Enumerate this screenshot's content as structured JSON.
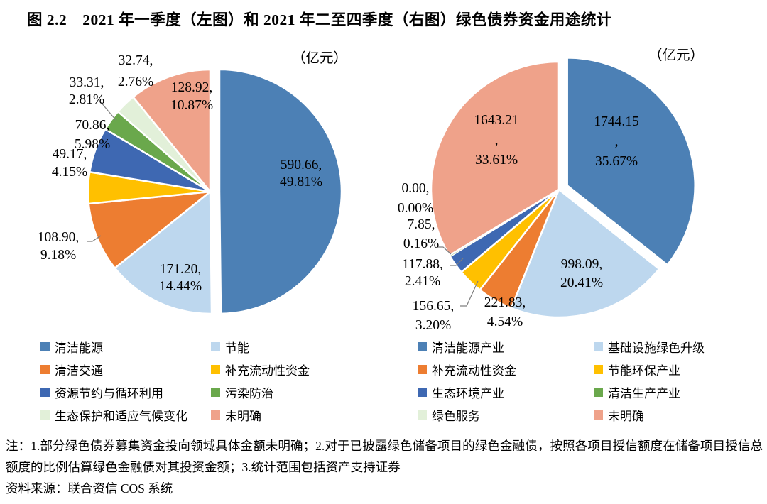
{
  "figure": {
    "title": "图 2.2　2021 年一季度（左图）和 2021 年二至四季度（右图）绿色债券资金用途统计",
    "notes": "注：1.部分绿色债券募集资金投向领域具体金额未明确；2.对于已披露绿色储备项目的绿色金融债，按照各项目授信额度在储备项目授信总额度的比例估算绿色金融债对其投资金额；3.统计范围包括资产支持证券",
    "source": "资料来源：联合资信 COS 系统"
  },
  "chart_data": [
    {
      "type": "pie",
      "name": "2021年一季度绿色债券资金用途",
      "unit": "（亿元）",
      "start_angle": "top",
      "clockwise": true,
      "exploded_slice": 0,
      "legend_position": "bottom",
      "legend_columns": 2,
      "slices": [
        {
          "label": "清洁能源",
          "value": 590.66,
          "pct": 49.81,
          "color": "#4C80B5",
          "data_label": "590.66,\n49.81%"
        },
        {
          "label": "节能",
          "value": 171.2,
          "pct": 14.44,
          "color": "#BDD7EE",
          "data_label": "171.20,\n14.44%"
        },
        {
          "label": "清洁交通",
          "value": 108.9,
          "pct": 9.18,
          "color": "#ED7D31",
          "data_label": "108.90,\n9.18%"
        },
        {
          "label": "补充流动性资金",
          "value": 49.17,
          "pct": 4.15,
          "color": "#FFC000",
          "data_label": "49.17,\n4.15%"
        },
        {
          "label": "资源节约与循环利用",
          "value": 70.86,
          "pct": 5.98,
          "color": "#3E68B2",
          "data_label": "70.86,\n5.98%"
        },
        {
          "label": "污染防治",
          "value": 33.31,
          "pct": 2.81,
          "color": "#6AA84C",
          "data_label": "33.31,\n2.81%"
        },
        {
          "label": "生态保护和适应气候变化",
          "value": 32.74,
          "pct": 2.76,
          "color": "#E2F0D9",
          "data_label": "32.74,\n2.76%"
        },
        {
          "label": "未明确",
          "value": 128.92,
          "pct": 10.87,
          "color": "#EFA28A",
          "data_label": "128.92,\n10.87%"
        }
      ]
    },
    {
      "type": "pie",
      "name": "2021年二至四季度绿色债券资金用途",
      "unit": "（亿元）",
      "start_angle": "top",
      "clockwise": true,
      "exploded_slice": 0,
      "legend_position": "bottom",
      "legend_columns": 2,
      "slices": [
        {
          "label": "清洁能源产业",
          "value": 1744.15,
          "pct": 35.67,
          "color": "#4C80B5",
          "data_label": "1744.15\n,\n35.67%"
        },
        {
          "label": "基础设施绿色升级",
          "value": 998.09,
          "pct": 20.41,
          "color": "#BDD7EE",
          "data_label": "998.09,\n20.41%"
        },
        {
          "label": "补充流动性资金",
          "value": 221.83,
          "pct": 4.54,
          "color": "#ED7D31",
          "data_label": "221.83,\n4.54%"
        },
        {
          "label": "节能环保产业",
          "value": 156.65,
          "pct": 3.2,
          "color": "#FFC000",
          "data_label": "156.65,\n3.20%"
        },
        {
          "label": "生态环境产业",
          "value": 117.88,
          "pct": 2.41,
          "color": "#3E68B2",
          "data_label": "117.88,\n2.41%"
        },
        {
          "label": "清洁生产产业",
          "value": 7.85,
          "pct": 0.16,
          "color": "#6AA84C",
          "data_label": "7.85,\n0.16%"
        },
        {
          "label": "绿色服务",
          "value": 0.0,
          "pct": 0.0,
          "color": "#E2F0D9",
          "data_label": "0.00,\n0.00%"
        },
        {
          "label": "未明确",
          "value": 1643.21,
          "pct": 33.61,
          "color": "#EFA28A",
          "data_label": "1643.21\n,\n33.61%"
        }
      ]
    }
  ]
}
